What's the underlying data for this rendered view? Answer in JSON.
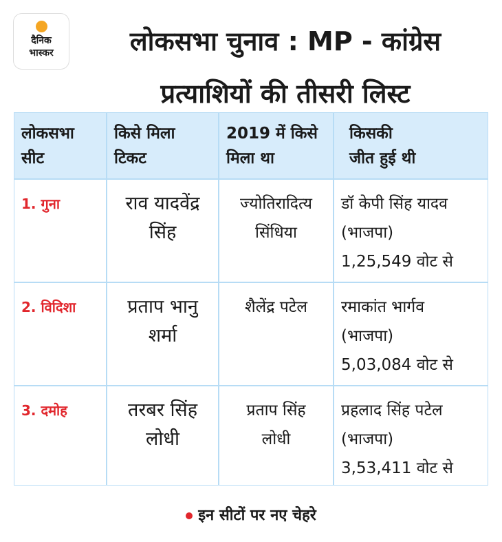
{
  "header": {
    "logo": [
      "दैनिक",
      "भास्कर"
    ],
    "title": [
      "लोकसभा चुनाव : MP - कांग्रेस",
      "प्रत्याशियों की तीसरी लिस्ट"
    ]
  },
  "table": {
    "columns": [
      [
        "लोकसभा",
        "सीट"
      ],
      [
        "किसे मिला",
        "टिकट"
      ],
      [
        "2019 में किसे",
        "मिला था"
      ],
      [
        "किसकी",
        "जीत हुई थी"
      ]
    ],
    "rows": [
      [
        [
          "1. गुना"
        ],
        [
          "राव यादवेंद्र",
          "सिंह"
        ],
        [
          "ज्योतिरादित्य",
          "सिंधिया"
        ],
        [
          "डॉ केपी सिंह यादव",
          "(भाजपा)",
          "1,25,549 वोट से"
        ]
      ],
      [
        [
          "2. विदिशा"
        ],
        [
          "प्रताप भानु",
          "शर्मा"
        ],
        [
          "शैलेंद्र पटेल"
        ],
        [
          "रमाकांत भार्गव",
          "(भाजपा)",
          "5,03,084 वोट से"
        ]
      ],
      [
        [
          "3. दमोह"
        ],
        [
          "तरबर सिंह",
          "लोधी"
        ],
        [
          "प्रताप सिंह",
          "लोधी"
        ],
        [
          "प्रहलाद सिंह पटेल",
          "(भाजपा)",
          "3,53,411 वोट से"
        ]
      ]
    ]
  },
  "footer": {
    "note": "इन सीटों पर नए चेहरे"
  }
}
